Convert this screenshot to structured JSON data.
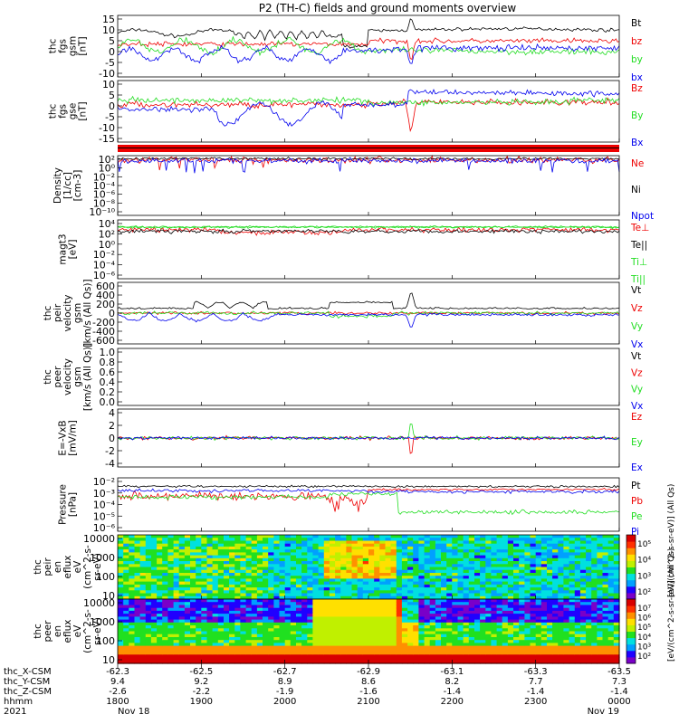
{
  "title": "P2 (TH-C) fields and ground moments overview",
  "colors": {
    "black": "#000000",
    "red": "#ee0000",
    "green": "#22dd22",
    "blue": "#0000ee"
  },
  "chart_data": [
    {
      "type": "line",
      "ylabel": [
        "thc",
        "fgs",
        "gsm",
        "[nT]"
      ],
      "ylim": [
        -15,
        15
      ],
      "yticks": [
        "15",
        "10",
        "5",
        "0",
        "-5",
        "-10"
      ],
      "legend": [
        {
          "name": "Bt",
          "color": "black"
        },
        {
          "name": "bz",
          "color": "red"
        },
        {
          "name": "by",
          "color": "green"
        },
        {
          "name": "bx",
          "color": "blue"
        }
      ]
    },
    {
      "type": "line",
      "ylabel": [
        "thc",
        "fgs",
        "gse",
        "[nT]"
      ],
      "ylim": [
        -18,
        10
      ],
      "yticks": [
        "10",
        "5",
        "0",
        "-5",
        "-10",
        "-15"
      ],
      "legend": [
        {
          "name": "Bz",
          "color": "red"
        },
        {
          "name": "By",
          "color": "green"
        },
        {
          "name": "Bx",
          "color": "blue"
        }
      ]
    },
    {
      "type": "line",
      "log": true,
      "ylabel": [
        "Density",
        "[1/cc]",
        "[cm-3]"
      ],
      "ylim": [
        -12,
        2
      ],
      "yticks": [
        "10²",
        "10⁰",
        "10⁻²",
        "10⁻⁴",
        "10⁻⁶",
        "10⁻⁸",
        "10⁻¹⁰"
      ],
      "legend": [
        {
          "name": "Ne",
          "color": "red"
        },
        {
          "name": "Ni",
          "color": "black"
        },
        {
          "name": "Npot",
          "color": "blue"
        }
      ]
    },
    {
      "type": "line",
      "log": true,
      "ylabel": [
        "magt3",
        "[eV]"
      ],
      "ylim": [
        -8,
        4
      ],
      "yticks": [
        "10⁴",
        "10²",
        "10⁰",
        "10⁻²",
        "10⁻⁴",
        "10⁻⁶"
      ],
      "legend": [
        {
          "name": "Te⊥",
          "color": "red"
        },
        {
          "name": "Te||",
          "color": "black"
        },
        {
          "name": "Ti⊥",
          "color": "green"
        },
        {
          "name": "Ti||",
          "color": "green"
        }
      ]
    },
    {
      "type": "line",
      "ylabel": [
        "thc",
        "peir",
        "velocity",
        "gsm",
        "[km/s (All Qs)]"
      ],
      "ylim": [
        -600,
        600
      ],
      "yticks": [
        "600",
        "400",
        "200",
        "0",
        "-200",
        "-400",
        "-600"
      ],
      "legend": [
        {
          "name": "Vt",
          "color": "black"
        },
        {
          "name": "Vz",
          "color": "red"
        },
        {
          "name": "Vy",
          "color": "green"
        },
        {
          "name": "Vx",
          "color": "blue"
        }
      ]
    },
    {
      "type": "line",
      "ylabel": [
        "thc",
        "peer",
        "velocity",
        "gsm",
        "[km/s (All Qs)]"
      ],
      "ylim": [
        0,
        1
      ],
      "yticks": [
        "1.0",
        "0.8",
        "0.6",
        "0.4",
        "0.2",
        "0.0"
      ],
      "legend": [
        {
          "name": "Vt",
          "color": "black"
        },
        {
          "name": "Vz",
          "color": "red"
        },
        {
          "name": "Vy",
          "color": "green"
        },
        {
          "name": "Vx",
          "color": "blue"
        }
      ]
    },
    {
      "type": "line",
      "ylabel": [
        "E=-VxB",
        "[mV/m]"
      ],
      "ylim": [
        -4,
        4
      ],
      "yticks": [
        "4",
        "2",
        "0",
        "-2",
        "-4"
      ],
      "legend": [
        {
          "name": "Ez",
          "color": "red"
        },
        {
          "name": "Ey",
          "color": "green"
        },
        {
          "name": "Ex",
          "color": "blue"
        }
      ]
    },
    {
      "type": "line",
      "log": true,
      "ylabel": [
        "Pressure",
        "[nPa]"
      ],
      "ylim": [
        -6,
        -1
      ],
      "yticks": [
        "10⁻²",
        "10⁻³",
        "10⁻⁴",
        "10⁻⁵",
        "10⁻⁶"
      ],
      "legend": [
        {
          "name": "Pt",
          "color": "black"
        },
        {
          "name": "Pb",
          "color": "red"
        },
        {
          "name": "Pe",
          "color": "green"
        },
        {
          "name": "Pi",
          "color": "blue"
        }
      ]
    },
    {
      "type": "heatmap",
      "log": true,
      "ylabel": [
        "thc",
        "peir",
        "en",
        "eflux",
        "eV",
        "(cm^2-s-",
        "sr-eV)"
      ],
      "yticks": [
        "10000",
        "1000",
        "100",
        "10"
      ],
      "colorbar": {
        "label": "[eV/(cm^2-s-sr-eV)] (All Qs)",
        "ticks": [
          "10⁵",
          "10⁴",
          "10³",
          "10²"
        ]
      }
    },
    {
      "type": "heatmap",
      "log": true,
      "ylabel": [
        "thc",
        "peer",
        "en",
        "eflux",
        "eV",
        "(cm^2-s-",
        "sr-eV)"
      ],
      "yticks": [
        "10000",
        "1000",
        "100",
        "10"
      ],
      "colorbar": {
        "label": "[eV/(cm^2-s-sr-eV)] (All Qs)",
        "ticks": [
          "10⁷",
          "10⁶",
          "10⁵",
          "10⁴",
          "10³",
          "10²"
        ]
      }
    }
  ],
  "xaxis": {
    "rows": [
      {
        "label": "thc_X-CSM",
        "values": [
          "-62.3",
          "-62.5",
          "-62.7",
          "-62.9",
          "-63.1",
          "-63.3",
          "-63.5"
        ]
      },
      {
        "label": "thc_Y-CSM",
        "values": [
          "9.4",
          "9.2",
          "8.9",
          "8.6",
          "8.2",
          "7.7",
          "7.3"
        ]
      },
      {
        "label": "thc_Z-CSM",
        "values": [
          "-2.6",
          "-2.2",
          "-1.9",
          "-1.6",
          "-1.4",
          "-1.4",
          "-1.4"
        ]
      },
      {
        "label": "hhmm",
        "values": [
          "1800",
          "1900",
          "2000",
          "2100",
          "2200",
          "2300",
          "0000"
        ]
      },
      {
        "label": "2021",
        "values": [
          "Nov 18",
          "",
          "",
          "",
          "",
          "",
          "Nov 19"
        ]
      }
    ]
  }
}
